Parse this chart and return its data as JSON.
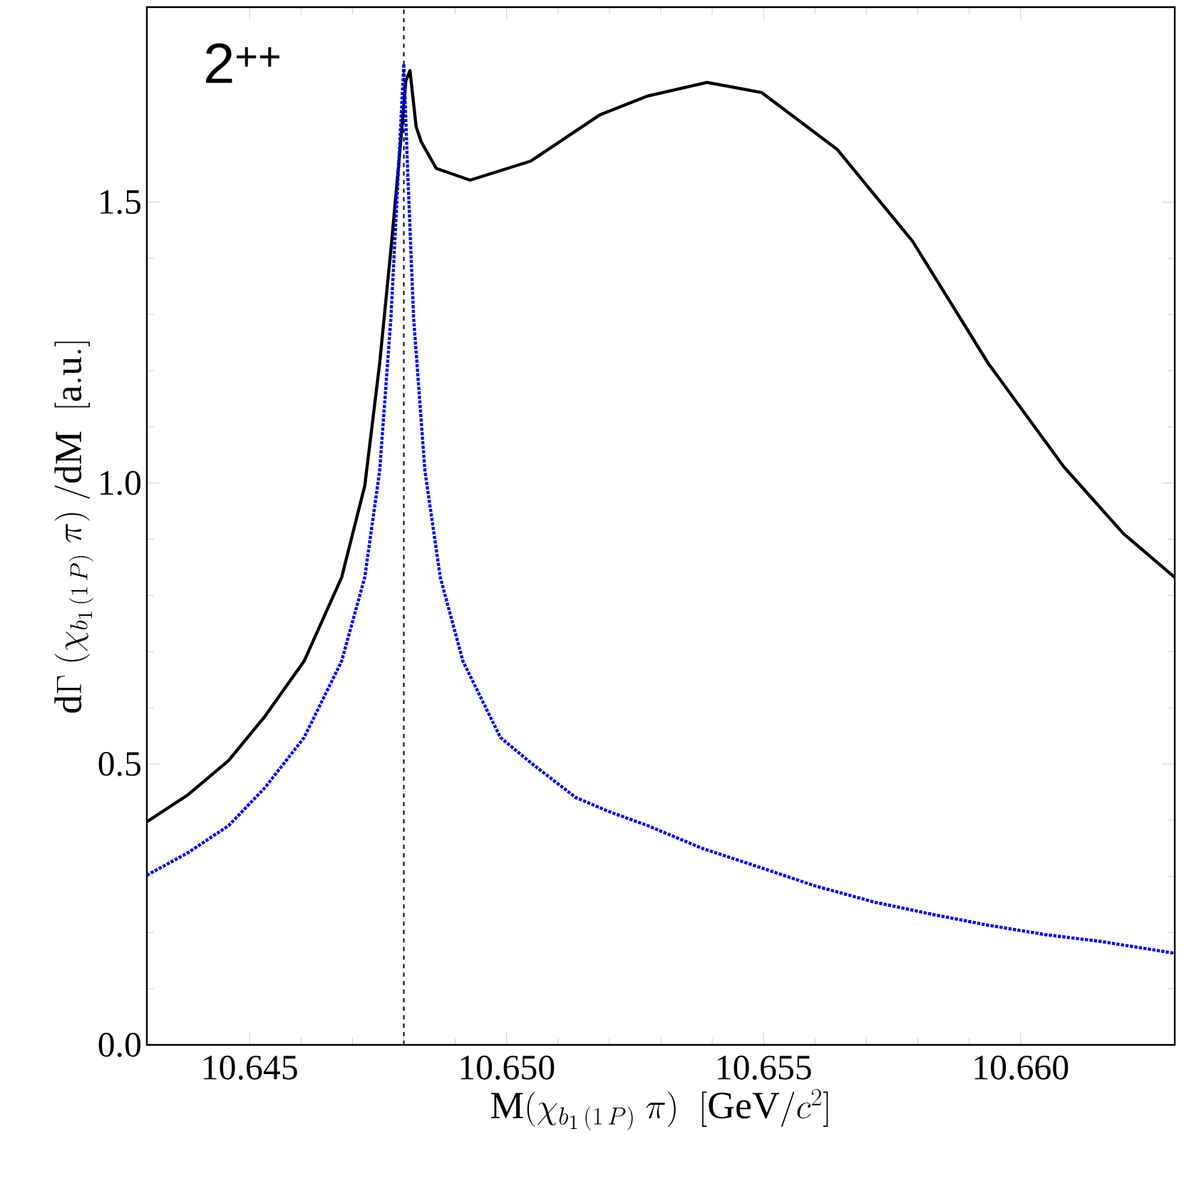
{
  "chart_data": {
    "type": "line",
    "xlabel": "\\mathrm{M}(\\chi_{b_1\\,(1\\,P)}\\;\\pi)\\;\\;[\\mathrm{GeV}/c^2]",
    "ylabel": "\\mathrm{d}\\Gamma\\;(\\chi_{b_1\\,(1\\,P)}\\;\\pi)\\;\\mathrm{/dM}\\;\\;[\\mathrm{a.u.}]",
    "annotations": [
      "2$^{++}$"
    ],
    "xlim": [
      10.643,
      10.663
    ],
    "ylim": [
      0,
      1.847
    ],
    "xticks": [
      10.645,
      {
        "value": 10.65,
        "label": "10.650"
      },
      10.655,
      {
        "value": 10.66,
        "label": "10.660"
      }
    ],
    "yticks": [
      {
        "value": 0,
        "label": "0.0"
      },
      0.5,
      {
        "value": 1,
        "label": "1.0"
      },
      1.5
    ],
    "ref_lines": [
      {
        "axis": "x",
        "value": 10.648,
        "color": "#000000",
        "line_style": "dashed"
      }
    ],
    "marker": "none",
    "series": [
      {
        "color": "#000000",
        "line_style": "solid",
        "x": [
          10.643,
          10.6438,
          10.64459,
          10.6453,
          10.64606,
          10.64679,
          10.64724,
          10.64753,
          10.64775,
          10.6479,
          10.64804,
          10.64812,
          10.64824,
          10.64834,
          10.64863,
          10.64929,
          10.65047,
          10.65181,
          10.65275,
          10.6539,
          10.65496,
          10.65643,
          10.6579,
          10.65937,
          10.66084,
          10.662,
          10.663
        ],
        "values": [
          0.397,
          0.445,
          0.506,
          0.585,
          0.683,
          0.832,
          0.995,
          1.213,
          1.417,
          1.566,
          1.716,
          1.734,
          1.634,
          1.607,
          1.56,
          1.539,
          1.573,
          1.655,
          1.689,
          1.713,
          1.695,
          1.594,
          1.43,
          1.213,
          1.029,
          0.91,
          0.832
        ]
      },
      {
        "color": "#0000ff",
        "line_style": "dotted",
        "x": [
          10.643,
          10.6438,
          10.64459,
          10.6453,
          10.64606,
          10.64679,
          10.64724,
          10.64753,
          10.64775,
          10.6479,
          10.648,
          10.64807,
          10.64819,
          10.64841,
          10.64871,
          10.64915,
          10.64988,
          10.6505,
          10.65135,
          10.652,
          10.65275,
          10.6538,
          10.65496,
          10.656,
          10.65716,
          10.6583,
          10.65937,
          10.6605,
          10.66157,
          10.663
        ],
        "values": [
          0.302,
          0.342,
          0.39,
          0.458,
          0.547,
          0.683,
          0.832,
          1.022,
          1.295,
          1.566,
          1.746,
          1.566,
          1.295,
          1.022,
          0.832,
          0.683,
          0.547,
          0.5,
          0.44,
          0.415,
          0.39,
          0.35,
          0.315,
          0.283,
          0.254,
          0.232,
          0.213,
          0.196,
          0.184,
          0.163
        ]
      }
    ]
  }
}
